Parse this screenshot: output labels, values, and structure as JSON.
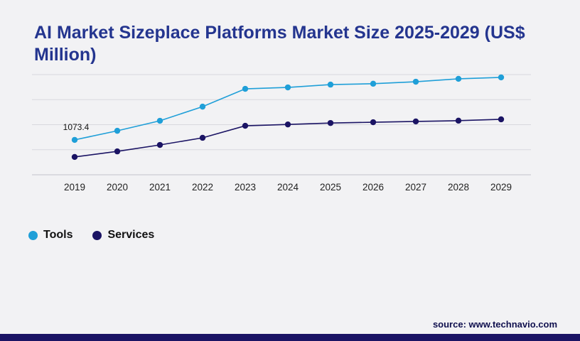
{
  "title": "AI Market Sizeplace Platforms Market Size 2025-2029 (US$ Million)",
  "source": "source: www.technavio.com",
  "annotation": {
    "text": "1073.4",
    "series": "Tools",
    "x": "2019"
  },
  "legend": {
    "items": [
      {
        "label": "Tools",
        "color": "#1f9fd8"
      },
      {
        "label": "Services",
        "color": "#1b1464"
      }
    ]
  },
  "colors": {
    "title": "#24358f",
    "footer_bar": "#1b1464",
    "grid": "#d8d8de",
    "axis": "#c2c2cc"
  },
  "chart_data": {
    "type": "line",
    "x": [
      "2019",
      "2020",
      "2021",
      "2022",
      "2023",
      "2024",
      "2025",
      "2026",
      "2027",
      "2028",
      "2029"
    ],
    "series": [
      {
        "name": "Tools",
        "color": "#1f9fd8",
        "values": [
          1073.4,
          1155,
          1245,
          1372,
          1532,
          1545,
          1570,
          1578,
          1596,
          1622,
          1635
        ]
      },
      {
        "name": "Services",
        "color": "#1b1464",
        "values": [
          920,
          970,
          1028,
          1092,
          1200,
          1212,
          1225,
          1232,
          1239,
          1246,
          1258
        ]
      }
    ],
    "title": "AI Market Sizeplace Platforms Market Size 2025-2029 (US$ Million)",
    "xlabel": "",
    "ylabel": "",
    "ylim": [
      760,
      1660
    ],
    "grid": true,
    "legend_position": "bottom-left",
    "data_labels": [
      {
        "series": "Tools",
        "x": "2019",
        "text": "1073.4"
      }
    ]
  }
}
